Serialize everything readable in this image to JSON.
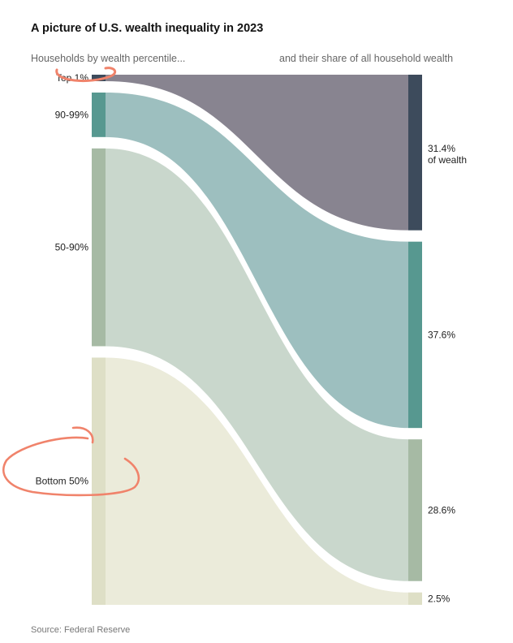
{
  "chart_data": {
    "type": "sankey",
    "title": "A picture of U.S. wealth inequality in 2023",
    "left_subtitle": "Households by wealth percentile...",
    "right_subtitle": "and their share of all household wealth",
    "source": "Source: Federal Reserve",
    "groups": [
      {
        "name": "Top 1%",
        "household_share": 1,
        "wealth_share": 31.4,
        "value_label": "31.4%",
        "value_label_line2": "of wealth",
        "node_color": "#3d4b5c",
        "flow_color": "#888490"
      },
      {
        "name": "90-99%",
        "household_share": 9,
        "wealth_share": 37.6,
        "value_label": "37.6%",
        "value_label_line2": "",
        "node_color": "#579890",
        "flow_color": "#9dbfbf"
      },
      {
        "name": "50-90%",
        "household_share": 40,
        "wealth_share": 28.6,
        "value_label": "28.6%",
        "value_label_line2": "",
        "node_color": "#a6baa4",
        "flow_color": "#c9d7cc"
      },
      {
        "name": "Bottom 50%",
        "household_share": 50,
        "wealth_share": 2.5,
        "value_label": "2.5%",
        "value_label_line2": "",
        "node_color": "#dedfc6",
        "flow_color": "#ebebda"
      }
    ],
    "annotation_color": "#f0836b"
  }
}
